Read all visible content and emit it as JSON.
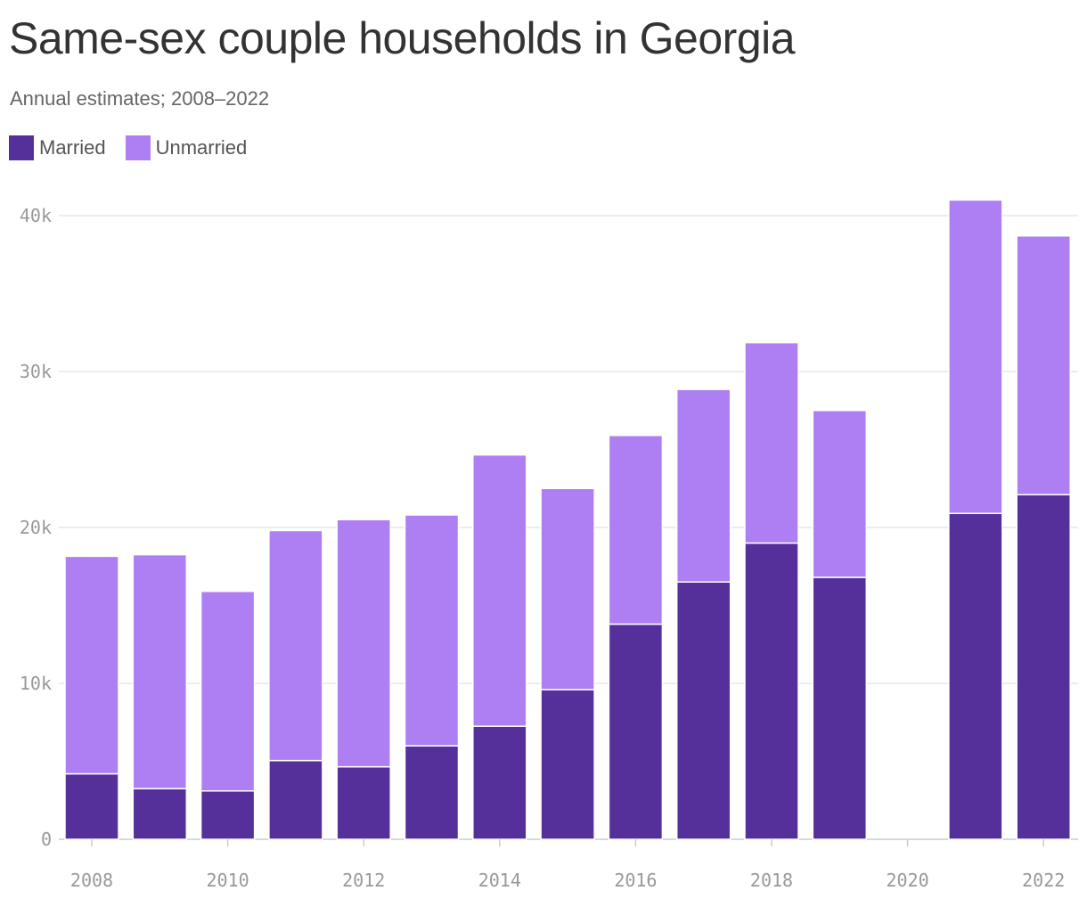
{
  "title": "Same-sex couple households in Georgia",
  "subtitle": "Annual estimates; 2008–2022",
  "legend": [
    {
      "label": "Married",
      "color": "#56309A"
    },
    {
      "label": "Unmarried",
      "color": "#AE7FF2"
    }
  ],
  "chart_data": {
    "type": "bar",
    "stacked": true,
    "title": "Same-sex couple households in Georgia",
    "subtitle": "Annual estimates; 2008–2022",
    "xlabel": "",
    "ylabel": "",
    "x": [
      2008,
      2009,
      2010,
      2011,
      2012,
      2013,
      2014,
      2015,
      2016,
      2017,
      2018,
      2019,
      2020,
      2021,
      2022
    ],
    "x_ticks": [
      "2008",
      "2010",
      "2012",
      "2014",
      "2016",
      "2018",
      "2020",
      "2022"
    ],
    "y_ticks": [
      "0",
      "10k",
      "20k",
      "30k",
      "40k"
    ],
    "y_tick_values": [
      0,
      10000,
      20000,
      30000,
      40000
    ],
    "ylim": [
      0,
      40000
    ],
    "grid": true,
    "legend_position": "top-left",
    "series": [
      {
        "name": "Married",
        "color": "#56309A",
        "values": [
          4200,
          3250,
          3100,
          5050,
          4650,
          6000,
          7250,
          9600,
          13800,
          16500,
          19000,
          16800,
          null,
          20900,
          22100
        ]
      },
      {
        "name": "Unmarried",
        "color": "#AE7FF2",
        "values": [
          13950,
          15000,
          12800,
          14750,
          15850,
          14800,
          17400,
          12900,
          12100,
          12350,
          12850,
          10700,
          null,
          20100,
          16600
        ]
      }
    ]
  }
}
